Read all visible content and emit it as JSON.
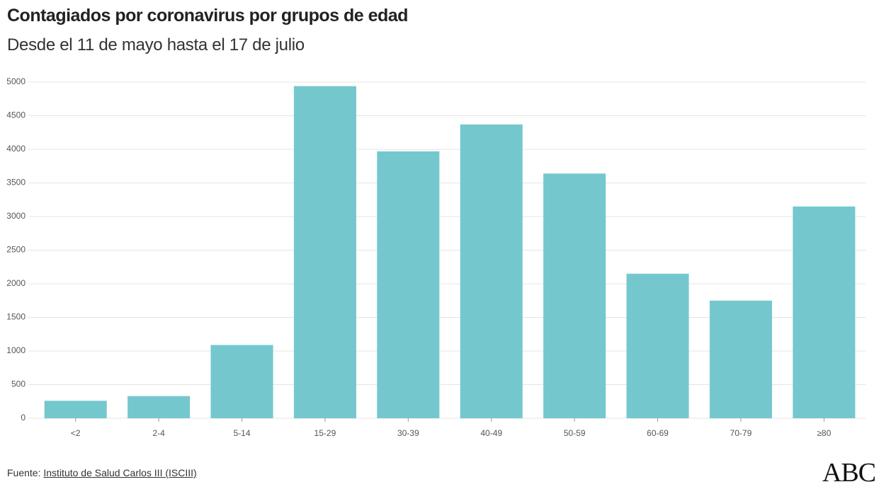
{
  "chart_data": {
    "type": "bar",
    "title": "Contagiados por coronavirus por grupos de edad",
    "subtitle": "Desde el 11 de mayo hasta el 17 de julio",
    "categories": [
      "<2",
      "2-4",
      "5-14",
      "15-29",
      "30-39",
      "40-49",
      "50-59",
      "60-69",
      "70-79",
      "≥80"
    ],
    "values": [
      260,
      330,
      1090,
      4940,
      3970,
      4370,
      3640,
      2150,
      1750,
      3150
    ],
    "color": "#74c8cd",
    "ylim": [
      0,
      5000
    ],
    "yticks": [
      0,
      500,
      1000,
      1500,
      2000,
      2500,
      3000,
      3500,
      4000,
      4500,
      5000
    ],
    "grid": true
  },
  "footer": {
    "source_prefix": "Fuente:",
    "source_link": "Instituto de Salud Carlos III (ISCIII)",
    "logo": "ABC"
  }
}
